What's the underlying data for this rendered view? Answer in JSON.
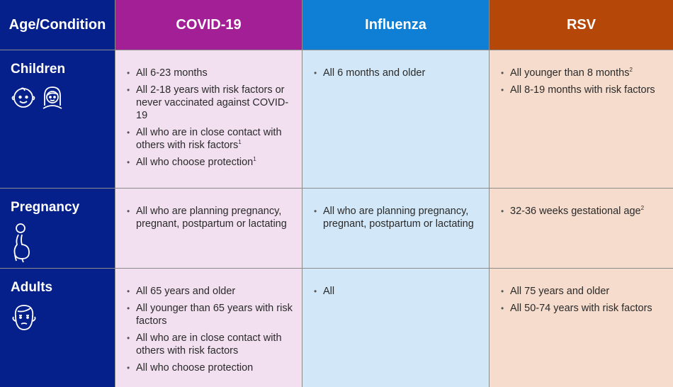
{
  "headers": {
    "age": "Age/Condition",
    "covid": "COVID-19",
    "flu": "Influenza",
    "rsv": "RSV"
  },
  "rows": [
    {
      "label": "Children",
      "icons": [
        "baby-face-icon",
        "girl-face-icon"
      ],
      "covid": [
        {
          "text": "All 6-23 months",
          "sup": ""
        },
        {
          "text": "All 2-18 years with risk factors or never vaccinated against COVID-19",
          "sup": ""
        },
        {
          "text": "All who are in close contact with others with risk factors",
          "sup": "1"
        },
        {
          "text": "All who choose protection",
          "sup": "1"
        }
      ],
      "flu": [
        {
          "text": "All 6 months and older",
          "sup": ""
        }
      ],
      "rsv": [
        {
          "text": "All younger than 8 months",
          "sup": "2"
        },
        {
          "text": "All 8-19 months with risk factors",
          "sup": ""
        }
      ]
    },
    {
      "label": "Pregnancy",
      "icons": [
        "pregnant-person-icon"
      ],
      "covid": [
        {
          "text": "All who are planning pregnancy, pregnant, postpartum or lactating",
          "sup": ""
        }
      ],
      "flu": [
        {
          "text": "All who are planning pregnancy, pregnant, postpartum or lactating",
          "sup": ""
        }
      ],
      "rsv": [
        {
          "text": "32-36 weeks gestational age",
          "sup": "2"
        }
      ]
    },
    {
      "label": "Adults",
      "icons": [
        "adult-face-icon"
      ],
      "covid": [
        {
          "text": "All 65 years and older",
          "sup": ""
        },
        {
          "text": "All younger than 65 years with risk factors",
          "sup": ""
        },
        {
          "text": "All who are in close contact with others with risk factors",
          "sup": ""
        },
        {
          "text": "All who choose protection",
          "sup": ""
        }
      ],
      "flu": [
        {
          "text": "All",
          "sup": ""
        }
      ],
      "rsv": [
        {
          "text": "All 75 years and older",
          "sup": ""
        },
        {
          "text": "All 50-74 years with risk factors",
          "sup": ""
        }
      ]
    }
  ],
  "colors": {
    "age_header": "#05208a",
    "covid_header": "#a21f96",
    "flu_header": "#0f7fd6",
    "rsv_header": "#b54708",
    "covid_cell": "#f2e0f0",
    "flu_cell": "#d2e7f7",
    "rsv_cell": "#f6dccc"
  }
}
